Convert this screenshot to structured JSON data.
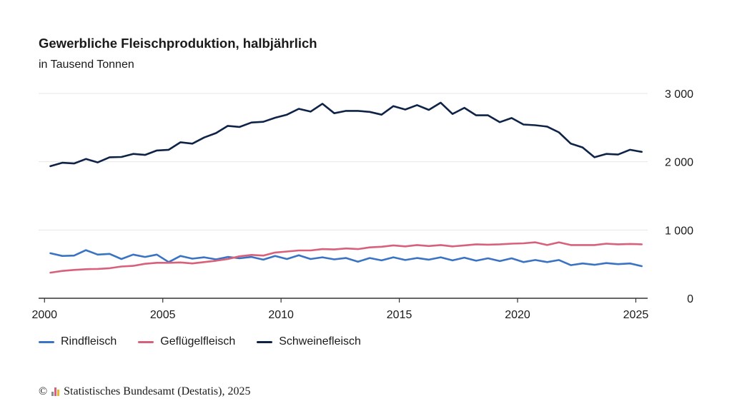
{
  "header": {
    "title": "Gewerbliche Fleischproduktion, halbjährlich",
    "subtitle": "in Tausend Tonnen"
  },
  "source": {
    "copyright_symbol": "©",
    "text": "Statistisches Bundesamt (Destatis), 2025"
  },
  "colors": {
    "rindfleisch": "#3a73c4",
    "gefluegelfleisch": "#d9607a",
    "schweinefleisch": "#0f2347",
    "grid": "#e6e6e6",
    "axis": "#333333"
  },
  "chart_data": {
    "type": "line",
    "title": "Gewerbliche Fleischproduktion, halbjährlich",
    "subtitle": "in Tausend Tonnen",
    "xlabel": "",
    "ylabel": "",
    "x_ticks": [
      "2000",
      "2005",
      "2010",
      "2015",
      "2020",
      "2025"
    ],
    "y_ticks": [
      "0",
      "1 000",
      "2 000",
      "3 000"
    ],
    "ylim": [
      0,
      3000
    ],
    "xlim": [
      1999.75,
      2025.5
    ],
    "grid": true,
    "legend_position": "bottom-left",
    "x": [
      2000.25,
      2000.75,
      2001.25,
      2001.75,
      2002.25,
      2002.75,
      2003.25,
      2003.75,
      2004.25,
      2004.75,
      2005.25,
      2005.75,
      2006.25,
      2006.75,
      2007.25,
      2007.75,
      2008.25,
      2008.75,
      2009.25,
      2009.75,
      2010.25,
      2010.75,
      2011.25,
      2011.75,
      2012.25,
      2012.75,
      2013.25,
      2013.75,
      2014.25,
      2014.75,
      2015.25,
      2015.75,
      2016.25,
      2016.75,
      2017.25,
      2017.75,
      2018.25,
      2018.75,
      2019.25,
      2019.75,
      2020.25,
      2020.75,
      2021.25,
      2021.75,
      2022.25,
      2022.75,
      2023.25,
      2023.75,
      2024.25,
      2024.75,
      2025.25
    ],
    "series": [
      {
        "name": "Rindfleisch",
        "color_key": "rindfleisch",
        "values": [
          660,
          620,
          625,
          705,
          640,
          650,
          575,
          640,
          605,
          640,
          530,
          620,
          580,
          600,
          570,
          605,
          585,
          605,
          565,
          620,
          575,
          630,
          575,
          600,
          570,
          590,
          535,
          590,
          555,
          600,
          560,
          590,
          565,
          600,
          555,
          595,
          550,
          585,
          545,
          585,
          530,
          560,
          530,
          560,
          485,
          510,
          490,
          515,
          500,
          510,
          470
        ]
      },
      {
        "name": "Geflügelfleisch",
        "color_key": "gefluegelfleisch",
        "values": [
          375,
          400,
          415,
          425,
          430,
          440,
          465,
          475,
          505,
          520,
          520,
          525,
          510,
          530,
          550,
          575,
          615,
          635,
          625,
          670,
          685,
          700,
          700,
          720,
          715,
          730,
          720,
          745,
          755,
          775,
          760,
          780,
          765,
          780,
          760,
          775,
          790,
          785,
          790,
          800,
          805,
          820,
          780,
          820,
          780,
          780,
          780,
          800,
          790,
          795,
          790
        ]
      },
      {
        "name": "Schweinefleisch",
        "color_key": "schweinefleisch",
        "values": [
          1935,
          1985,
          1975,
          2040,
          1990,
          2065,
          2070,
          2115,
          2100,
          2165,
          2175,
          2285,
          2265,
          2355,
          2420,
          2525,
          2510,
          2575,
          2585,
          2645,
          2690,
          2775,
          2735,
          2850,
          2710,
          2745,
          2745,
          2730,
          2690,
          2815,
          2765,
          2830,
          2760,
          2865,
          2700,
          2790,
          2680,
          2680,
          2580,
          2640,
          2545,
          2535,
          2515,
          2430,
          2265,
          2210,
          2065,
          2115,
          2105,
          2175,
          2145
        ]
      }
    ]
  }
}
